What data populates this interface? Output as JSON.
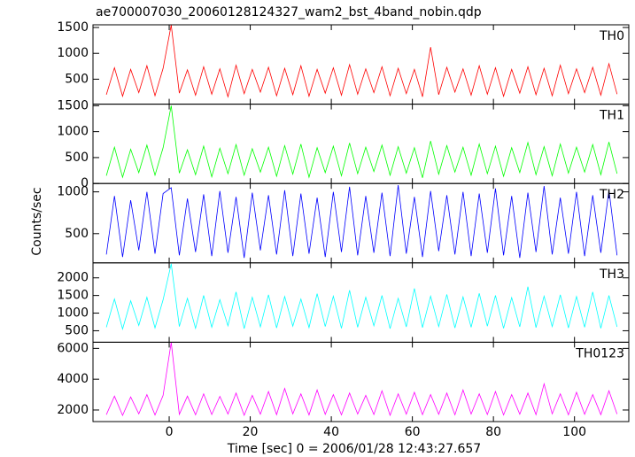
{
  "title": "ae700007030_20060128124327_wam2_bst_4band_nobin.qdp",
  "x_label": "Time [sec] 0 = 2006/01/28 12:43:27.657",
  "y_label": "Counts/sec",
  "chart_data": [
    {
      "type": "line",
      "xlim": [
        -18.8,
        113.4
      ],
      "xticks": [
        0,
        20,
        40,
        60,
        80,
        100
      ],
      "ylim": [
        17,
        1552
      ],
      "yticks": [
        500,
        1000,
        1500
      ],
      "x": [
        -15.5,
        -13.5,
        -11.5,
        -9.5,
        -7.5,
        -5.5,
        -3.5,
        -1.5,
        0.5,
        2.5,
        4.5,
        6.5,
        8.5,
        10.5,
        12.5,
        14.5,
        16.5,
        18.5,
        20.5,
        22.5,
        24.5,
        26.5,
        28.5,
        30.5,
        32.5,
        34.5,
        36.5,
        38.5,
        40.5,
        42.5,
        44.5,
        46.5,
        48.5,
        50.5,
        52.5,
        54.5,
        56.5,
        58.5,
        60.5,
        62.5,
        64.5,
        66.5,
        68.5,
        70.5,
        72.5,
        74.5,
        76.5,
        78.5,
        80.5,
        82.5,
        84.5,
        86.5,
        88.5,
        90.5,
        92.5,
        94.5,
        96.5,
        98.5,
        100.5,
        102.5,
        104.5,
        106.5,
        108.5,
        110.5
      ],
      "series": [
        {
          "name": "TH0",
          "color": "#ff0000",
          "values": [
            200,
            720,
            170,
            690,
            240,
            760,
            180,
            710,
            1550,
            230,
            680,
            190,
            740,
            210,
            700,
            160,
            770,
            220,
            690,
            250,
            730,
            180,
            710,
            200,
            760,
            170,
            690,
            230,
            720,
            190,
            780,
            210,
            700,
            240,
            740,
            180,
            710,
            220,
            690,
            160,
            1120,
            200,
            730,
            250,
            700,
            190,
            760,
            210,
            720,
            170,
            690,
            230,
            740,
            200,
            710,
            180,
            770,
            220,
            700,
            240,
            730,
            190,
            800,
            210
          ]
        }
      ]
    },
    {
      "type": "line",
      "xlim": [
        -18.8,
        113.4
      ],
      "xticks": [
        0,
        20,
        40,
        60,
        80,
        100
      ],
      "ylim": [
        0,
        1530
      ],
      "yticks": [
        0,
        500,
        1000,
        1500
      ],
      "x": [
        -15.5,
        -13.5,
        -11.5,
        -9.5,
        -7.5,
        -5.5,
        -3.5,
        -1.5,
        0.5,
        2.5,
        4.5,
        6.5,
        8.5,
        10.5,
        12.5,
        14.5,
        16.5,
        18.5,
        20.5,
        22.5,
        24.5,
        26.5,
        28.5,
        30.5,
        32.5,
        34.5,
        36.5,
        38.5,
        40.5,
        42.5,
        44.5,
        46.5,
        48.5,
        50.5,
        52.5,
        54.5,
        56.5,
        58.5,
        60.5,
        62.5,
        64.5,
        66.5,
        68.5,
        70.5,
        72.5,
        74.5,
        76.5,
        78.5,
        80.5,
        82.5,
        84.5,
        86.5,
        88.5,
        90.5,
        92.5,
        94.5,
        96.5,
        98.5,
        100.5,
        102.5,
        104.5,
        106.5,
        108.5,
        110.5
      ],
      "series": [
        {
          "name": "TH1",
          "color": "#00ff00",
          "values": [
            150,
            700,
            120,
            660,
            210,
            740,
            160,
            690,
            1500,
            200,
            650,
            170,
            720,
            130,
            680,
            190,
            750,
            160,
            670,
            220,
            700,
            140,
            730,
            180,
            760,
            120,
            690,
            210,
            720,
            150,
            780,
            190,
            700,
            230,
            740,
            160,
            710,
            200,
            690,
            110,
            820,
            180,
            730,
            220,
            700,
            160,
            760,
            190,
            720,
            140,
            690,
            210,
            790,
            170,
            710,
            150,
            760,
            200,
            700,
            220,
            750,
            170,
            800,
            190
          ]
        }
      ]
    },
    {
      "type": "line",
      "xlim": [
        -18.8,
        113.4
      ],
      "xticks": [
        0,
        20,
        40,
        60,
        80,
        100
      ],
      "ylim": [
        150,
        1100
      ],
      "yticks": [
        500,
        1000
      ],
      "x": [
        -15.5,
        -13.5,
        -11.5,
        -9.5,
        -7.5,
        -5.5,
        -3.5,
        -1.5,
        0.5,
        2.5,
        4.5,
        6.5,
        8.5,
        10.5,
        12.5,
        14.5,
        16.5,
        18.5,
        20.5,
        22.5,
        24.5,
        26.5,
        28.5,
        30.5,
        32.5,
        34.5,
        36.5,
        38.5,
        40.5,
        42.5,
        44.5,
        46.5,
        48.5,
        50.5,
        52.5,
        54.5,
        56.5,
        58.5,
        60.5,
        62.5,
        64.5,
        66.5,
        68.5,
        70.5,
        72.5,
        74.5,
        76.5,
        78.5,
        80.5,
        82.5,
        84.5,
        86.5,
        88.5,
        90.5,
        92.5,
        94.5,
        96.5,
        98.5,
        100.5,
        102.5,
        104.5,
        106.5,
        108.5,
        110.5
      ],
      "series": [
        {
          "name": "TH2",
          "color": "#0000ff",
          "values": [
            250,
            950,
            220,
            900,
            300,
            1000,
            260,
            980,
            1050,
            240,
            920,
            280,
            970,
            230,
            1010,
            270,
            940,
            210,
            990,
            300,
            960,
            250,
            1020,
            230,
            980,
            260,
            930,
            220,
            1000,
            280,
            1060,
            240,
            950,
            270,
            990,
            230,
            1080,
            260,
            940,
            220,
            1010,
            290,
            960,
            250,
            1000,
            230,
            980,
            270,
            1040,
            240,
            950,
            210,
            990,
            280,
            1070,
            250,
            930,
            260,
            1000,
            230,
            960,
            270,
            1020,
            240
          ]
        }
      ]
    },
    {
      "type": "line",
      "xlim": [
        -18.8,
        113.4
      ],
      "xticks": [
        0,
        20,
        40,
        60,
        80,
        100
      ],
      "ylim": [
        175,
        2425
      ],
      "yticks": [
        500,
        1000,
        1500,
        2000
      ],
      "x": [
        -15.5,
        -13.5,
        -11.5,
        -9.5,
        -7.5,
        -5.5,
        -3.5,
        -1.5,
        0.5,
        2.5,
        4.5,
        6.5,
        8.5,
        10.5,
        12.5,
        14.5,
        16.5,
        18.5,
        20.5,
        22.5,
        24.5,
        26.5,
        28.5,
        30.5,
        32.5,
        34.5,
        36.5,
        38.5,
        40.5,
        42.5,
        44.5,
        46.5,
        48.5,
        50.5,
        52.5,
        54.5,
        56.5,
        58.5,
        60.5,
        62.5,
        64.5,
        66.5,
        68.5,
        70.5,
        72.5,
        74.5,
        76.5,
        78.5,
        80.5,
        82.5,
        84.5,
        86.5,
        88.5,
        90.5,
        92.5,
        94.5,
        96.5,
        98.5,
        100.5,
        102.5,
        104.5,
        106.5,
        108.5,
        110.5
      ],
      "series": [
        {
          "name": "TH3",
          "color": "#00ffff",
          "values": [
            600,
            1400,
            550,
            1350,
            650,
            1450,
            580,
            1380,
            2400,
            620,
            1420,
            570,
            1500,
            600,
            1380,
            640,
            1600,
            560,
            1450,
            610,
            1520,
            580,
            1470,
            630,
            1400,
            590,
            1550,
            620,
            1480,
            570,
            1650,
            600,
            1450,
            640,
            1500,
            560,
            1420,
            610,
            1700,
            590,
            1480,
            620,
            1530,
            580,
            1460,
            600,
            1560,
            630,
            1500,
            570,
            1440,
            610,
            1750,
            590,
            1480,
            620,
            1520,
            580,
            1470,
            600,
            1600,
            570,
            1500,
            610
          ]
        }
      ]
    },
    {
      "type": "line",
      "xlim": [
        -18.8,
        113.4
      ],
      "xticks": [
        0,
        20,
        40,
        60,
        80,
        100
      ],
      "ylim": [
        1250,
        6400
      ],
      "yticks": [
        2000,
        4000,
        6000
      ],
      "x": [
        -15.5,
        -13.5,
        -11.5,
        -9.5,
        -7.5,
        -5.5,
        -3.5,
        -1.5,
        0.5,
        2.5,
        4.5,
        6.5,
        8.5,
        10.5,
        12.5,
        14.5,
        16.5,
        18.5,
        20.5,
        22.5,
        24.5,
        26.5,
        28.5,
        30.5,
        32.5,
        34.5,
        36.5,
        38.5,
        40.5,
        42.5,
        44.5,
        46.5,
        48.5,
        50.5,
        52.5,
        54.5,
        56.5,
        58.5,
        60.5,
        62.5,
        64.5,
        66.5,
        68.5,
        70.5,
        72.5,
        74.5,
        76.5,
        78.5,
        80.5,
        82.5,
        84.5,
        86.5,
        88.5,
        90.5,
        92.5,
        94.5,
        96.5,
        98.5,
        100.5,
        102.5,
        104.5,
        106.5,
        108.5,
        110.5
      ],
      "series": [
        {
          "name": "TH0123",
          "color": "#ff00ff",
          "values": [
            1700,
            2900,
            1650,
            2850,
            1750,
            3000,
            1680,
            2950,
            6400,
            1720,
            2900,
            1690,
            3050,
            1710,
            2880,
            1740,
            3100,
            1660,
            2950,
            1730,
            3200,
            1700,
            3400,
            1750,
            3050,
            1680,
            3300,
            1720,
            3000,
            1690,
            3100,
            1740,
            2950,
            1710,
            3250,
            1660,
            3050,
            1730,
            3150,
            1700,
            3000,
            1720,
            3100,
            1690,
            3300,
            1740,
            3050,
            1710,
            3200,
            1680,
            3000,
            1730,
            3100,
            1700,
            3700,
            1750,
            3050,
            1690,
            3150,
            1720,
            3000,
            1700,
            3250,
            1740
          ]
        }
      ]
    }
  ]
}
